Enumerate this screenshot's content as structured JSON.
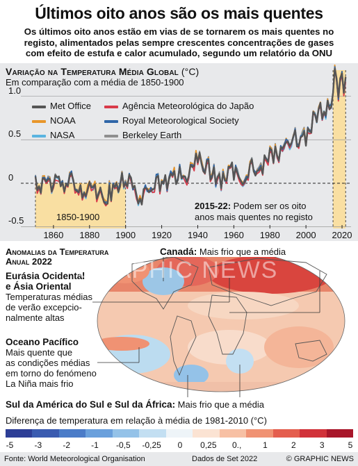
{
  "title": "Últimos oito anos são os mais quentes",
  "subtitle": [
    "Os últimos oito anos estão em vias de se tornarem os mais quentes no",
    "registo, alimentados pelas sempre crescentes concentrações de gases",
    "com efeito de estufa e calor acumulado, segundo um relatório da ONU"
  ],
  "chart_data": {
    "type": "line",
    "title": "Variação na Temperatura Média Global",
    "unit": "(°C)",
    "subtitle": "Em comparação com a média de 1850-1900",
    "ylim": [
      -0.52,
      1.3
    ],
    "xlim": [
      1845,
      2025
    ],
    "yticks": [
      {
        "v": 1.0,
        "label": "1.0"
      },
      {
        "v": 0.5,
        "label": "0.5"
      },
      {
        "v": 0,
        "label": "0"
      },
      {
        "v": -0.5,
        "label": "-0.5"
      }
    ],
    "xticks": [
      1860,
      1880,
      1900,
      1920,
      1940,
      1960,
      1980,
      2000,
      2020
    ],
    "years": [
      1850,
      1855,
      1860,
      1865,
      1870,
      1875,
      1880,
      1885,
      1890,
      1895,
      1900,
      1905,
      1910,
      1915,
      1920,
      1925,
      1930,
      1935,
      1940,
      1945,
      1950,
      1955,
      1960,
      1965,
      1970,
      1975,
      1980,
      1985,
      1990,
      1995,
      2000,
      2005,
      2010,
      2014,
      2015,
      2016,
      2017,
      2018,
      2019,
      2020,
      2021,
      2022
    ],
    "anomaly_base": [
      0.0,
      -0.03,
      0.02,
      -0.04,
      0.02,
      -0.08,
      -0.02,
      -0.1,
      -0.12,
      -0.06,
      0.08,
      -0.12,
      -0.18,
      0.02,
      -0.02,
      0.02,
      0.12,
      0.08,
      0.28,
      0.22,
      0.06,
      0.04,
      0.14,
      0.08,
      0.22,
      0.12,
      0.35,
      0.32,
      0.5,
      0.52,
      0.55,
      0.75,
      0.85,
      0.9,
      1.1,
      1.25,
      1.18,
      1.08,
      1.2,
      1.22,
      1.1,
      1.12
    ],
    "series": [
      {
        "name": "Met Office",
        "color": "#555555",
        "offset": 0.0
      },
      {
        "name": "NOAA",
        "color": "#e8962a",
        "offset": 0.02
      },
      {
        "name": "NASA",
        "color": "#5ab4e0",
        "offset": -0.02
      },
      {
        "name": "Agência Meteorológica do Japão",
        "color": "#d93a49",
        "offset": -0.04
      },
      {
        "name": "Royal Meteorological Society",
        "color": "#2f66a8",
        "offset": 0.01
      },
      {
        "name": "Berkeley Earth",
        "color": "#8f8f8f",
        "offset": 0.03
      }
    ],
    "shaded_ranges": [
      {
        "label": "1850-1900",
        "from": 1850,
        "to": 1900
      },
      {
        "label": "2015-22",
        "from": 2015,
        "to": 2022
      }
    ]
  },
  "callout": {
    "bold": "2015-22:",
    "text_1": " Podem ser os oito",
    "text_2": "anos mais quentes no registo"
  },
  "map": {
    "heading_1": "Anomalias da Temperatura",
    "heading_2": "Anual 2022",
    "annotations": {
      "canada_bold": "Canadá:",
      "canada_text": " Mais frio que a média",
      "eurasia_bold_1": "Eurásia Ocidental",
      "eurasia_bold_2": "e Ásia Oriental",
      "eurasia_text": [
        "Temperaturas médias",
        "de verão excepcio-",
        "nalmente altas"
      ],
      "pacific_bold": "Oceano Pacífico",
      "pacific_text": [
        "Mais quente que",
        "as condições médias",
        "em torno do fenómeno",
        "La Niña mais frio"
      ],
      "south_bold": "Sul da América do Sul e Sul da África:",
      "south_text": " Mais frio que a média"
    }
  },
  "scale": {
    "title": "Diferença de temperatura em relação à média de 1981-2010 (°C)",
    "colors": [
      "#2d3e96",
      "#3a5bb0",
      "#4b7cc8",
      "#6aa0dc",
      "#94c2e8",
      "#c3dff2",
      "#eef4f8",
      "#fbe3d3",
      "#f7c0a4",
      "#f09273",
      "#e45e4e",
      "#d1323a",
      "#a8162a"
    ],
    "ticks": [
      "-5",
      "-3",
      "-2",
      "-1",
      "-0,5",
      "-0,25",
      "0",
      "0,25",
      "0.,",
      "1",
      "2",
      "3",
      "5"
    ]
  },
  "footer": {
    "source": "Fonte: World Meteorological Organisation",
    "date": "Dados de Set 2022",
    "credit": "© GRAPHIC NEWS"
  },
  "watermark": "GRAPHIC NEWS"
}
